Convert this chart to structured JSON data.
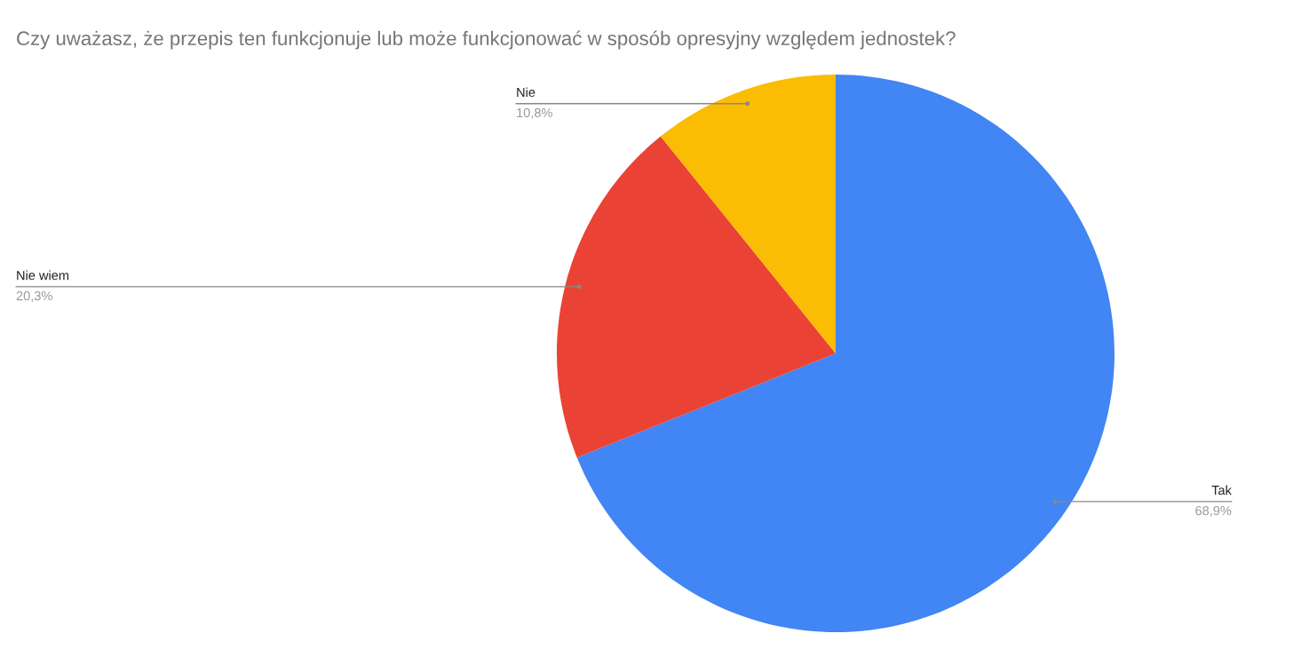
{
  "chart_data": {
    "type": "pie",
    "title": "Czy uważasz, że przepis ten funkcjonuje lub może funkcjonować w sposób opresyjny względem jednostek?",
    "categories": [
      "Tak",
      "Nie wiem",
      "Nie"
    ],
    "values": [
      68.9,
      20.3,
      10.8
    ],
    "value_labels": [
      "68,9%",
      "20,3%",
      "10,8%"
    ],
    "colors": [
      "#4285f4",
      "#ea4335",
      "#fbbc04"
    ],
    "legend": false
  }
}
